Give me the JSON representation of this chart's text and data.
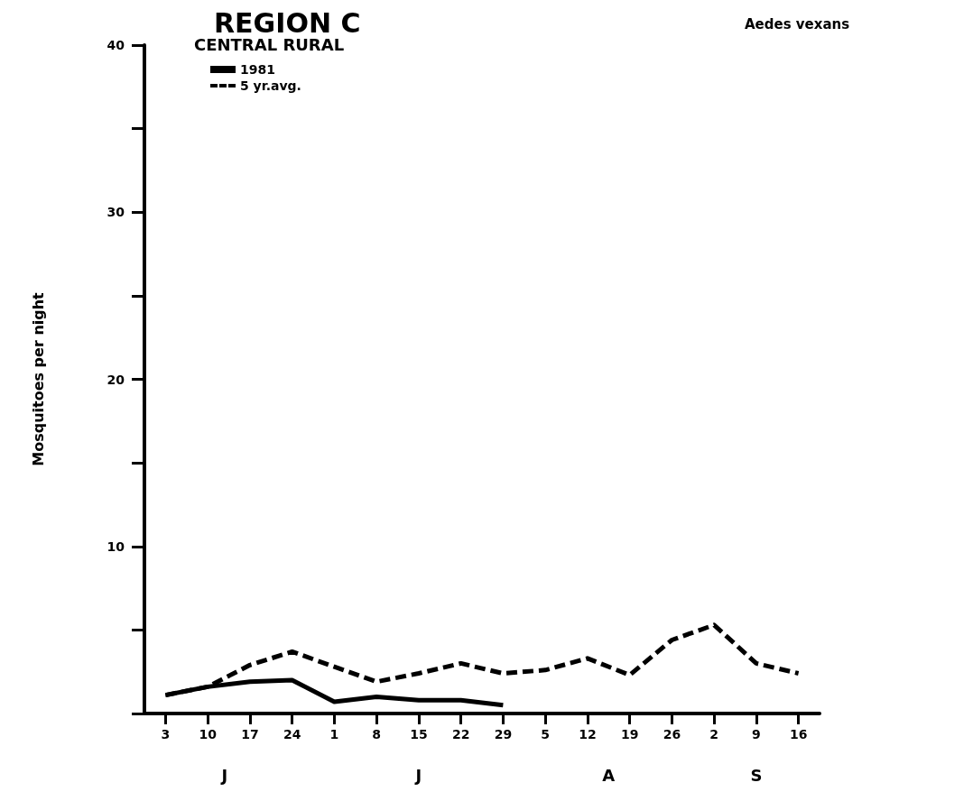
{
  "chart_data": {
    "type": "line",
    "title": "REGION C",
    "subtitle": "Aedes vexans",
    "ylabel": "Mosquitoes per night",
    "legend_title": "CENTRAL RURAL",
    "categories": [
      "3",
      "10",
      "17",
      "24",
      "1",
      "8",
      "15",
      "22",
      "29",
      "5",
      "12",
      "19",
      "26",
      "2",
      "9",
      "16"
    ],
    "series": [
      {
        "name": "1981",
        "color": "#000000",
        "line_style": "solid",
        "values": [
          1.1,
          1.6,
          1.9,
          2.0,
          0.7,
          1.0,
          0.8,
          0.8,
          0.5,
          null,
          null,
          null,
          null,
          null,
          null,
          null
        ]
      },
      {
        "name": "5 yr.avg.",
        "color": "#000000",
        "line_style": "dashed",
        "values": [
          1.1,
          1.6,
          2.9,
          3.7,
          2.8,
          1.9,
          2.4,
          3.0,
          2.4,
          2.6,
          3.3,
          2.3,
          4.4,
          5.3,
          3.0,
          2.4
        ]
      }
    ],
    "ylim": [
      0,
      40
    ],
    "yticks": [
      {
        "value": 0,
        "label": null
      },
      {
        "value": 5,
        "label": null
      },
      10,
      {
        "value": 15,
        "label": null
      },
      20,
      {
        "value": 25,
        "label": null
      },
      30,
      {
        "value": 35,
        "label": null
      },
      40
    ],
    "annotations": [
      "J",
      "J",
      "A",
      "S"
    ],
    "marker": "none",
    "grid": false,
    "legend": "top left"
  }
}
